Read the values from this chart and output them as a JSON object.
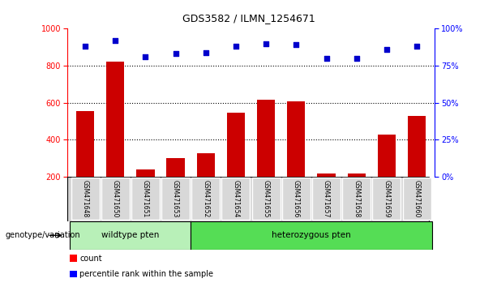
{
  "title": "GDS3582 / ILMN_1254671",
  "samples": [
    "GSM471648",
    "GSM471650",
    "GSM471651",
    "GSM471653",
    "GSM471652",
    "GSM471654",
    "GSM471655",
    "GSM471656",
    "GSM471657",
    "GSM471658",
    "GSM471659",
    "GSM471660"
  ],
  "counts": [
    555,
    820,
    240,
    300,
    325,
    545,
    615,
    605,
    215,
    215,
    425,
    530
  ],
  "percentile_ranks": [
    88,
    92,
    81,
    83,
    84,
    88,
    90,
    89,
    80,
    80,
    86,
    88
  ],
  "ylim_left": [
    200,
    1000
  ],
  "ylim_right": [
    0,
    100
  ],
  "yticks_left": [
    200,
    400,
    600,
    800,
    1000
  ],
  "yticks_right": [
    0,
    25,
    50,
    75,
    100
  ],
  "bar_color": "#cc0000",
  "dot_color": "#0000cc",
  "wildtype_count": 4,
  "heterozygous_count": 8,
  "wildtype_label": "wildtype pten",
  "heterozygous_label": "heterozygous pten",
  "genotype_label": "genotype/variation",
  "legend_count": "count",
  "legend_percentile": "percentile rank within the sample",
  "group_bg_wildtype": "#b8f0b8",
  "group_bg_heterozygous": "#55dd55"
}
